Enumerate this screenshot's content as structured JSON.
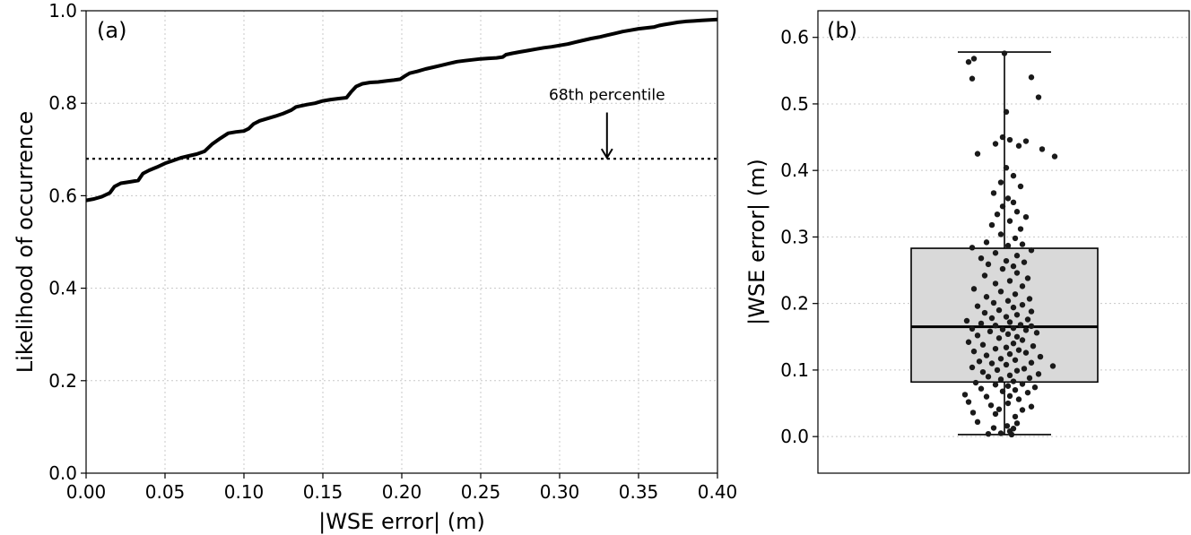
{
  "chart_data": [
    {
      "type": "line",
      "panel_label": "(a)",
      "xlabel": "|WSE error| (m)",
      "ylabel": "Likelihood of occurrence",
      "xlim": [
        0.0,
        0.4
      ],
      "ylim": [
        0.0,
        1.0
      ],
      "xticks": [
        "0.00",
        "0.05",
        "0.10",
        "0.15",
        "0.20",
        "0.25",
        "0.30",
        "0.35",
        "0.40"
      ],
      "yticks": [
        "0.0",
        "0.2",
        "0.4",
        "0.6",
        "0.8",
        "1.0"
      ],
      "grid": true,
      "series": [
        {
          "x": [
            0.0,
            0.005,
            0.01,
            0.015,
            0.018,
            0.022,
            0.028,
            0.033,
            0.036,
            0.04,
            0.045,
            0.05,
            0.055,
            0.06,
            0.065,
            0.07,
            0.075,
            0.08,
            0.085,
            0.09,
            0.095,
            0.1,
            0.103,
            0.106,
            0.11,
            0.115,
            0.12,
            0.125,
            0.13,
            0.133,
            0.137,
            0.14,
            0.145,
            0.15,
            0.155,
            0.16,
            0.165,
            0.168,
            0.171,
            0.175,
            0.18,
            0.185,
            0.19,
            0.195,
            0.199,
            0.202,
            0.205,
            0.21,
            0.215,
            0.22,
            0.225,
            0.23,
            0.235,
            0.24,
            0.245,
            0.25,
            0.255,
            0.26,
            0.264,
            0.266,
            0.27,
            0.275,
            0.28,
            0.285,
            0.29,
            0.295,
            0.3,
            0.305,
            0.31,
            0.315,
            0.32,
            0.325,
            0.33,
            0.335,
            0.34,
            0.345,
            0.35,
            0.355,
            0.36,
            0.363,
            0.366,
            0.37,
            0.375,
            0.38,
            0.385,
            0.39,
            0.395,
            0.4
          ],
          "y": [
            0.59,
            0.593,
            0.598,
            0.606,
            0.62,
            0.627,
            0.63,
            0.633,
            0.648,
            0.655,
            0.662,
            0.67,
            0.676,
            0.682,
            0.686,
            0.69,
            0.696,
            0.712,
            0.724,
            0.735,
            0.738,
            0.74,
            0.745,
            0.755,
            0.762,
            0.767,
            0.772,
            0.778,
            0.785,
            0.792,
            0.795,
            0.797,
            0.8,
            0.805,
            0.808,
            0.81,
            0.812,
            0.825,
            0.836,
            0.842,
            0.845,
            0.846,
            0.848,
            0.85,
            0.852,
            0.859,
            0.865,
            0.869,
            0.874,
            0.878,
            0.882,
            0.886,
            0.89,
            0.892,
            0.894,
            0.896,
            0.897,
            0.898,
            0.9,
            0.905,
            0.908,
            0.911,
            0.914,
            0.917,
            0.92,
            0.922,
            0.925,
            0.928,
            0.932,
            0.936,
            0.94,
            0.943,
            0.947,
            0.951,
            0.955,
            0.958,
            0.961,
            0.963,
            0.965,
            0.968,
            0.97,
            0.972,
            0.975,
            0.977,
            0.978,
            0.979,
            0.98,
            0.981
          ]
        }
      ],
      "hline": {
        "y": 0.68,
        "style": "dotted"
      },
      "annotation": {
        "text": "68th percentile",
        "arrow_x": 0.33,
        "arrow_from_y": 0.78,
        "arrow_to_y": 0.682
      }
    },
    {
      "type": "box",
      "panel_label": "(b)",
      "xlabel": "",
      "ylabel": "|WSE error| (m)",
      "ylim": [
        -0.055,
        0.64
      ],
      "yticks": [
        "0.0",
        "0.1",
        "0.2",
        "0.3",
        "0.4",
        "0.5",
        "0.6"
      ],
      "grid": true,
      "box": {
        "whisker_low": 0.003,
        "q1": 0.082,
        "median": 0.165,
        "q3": 0.283,
        "whisker_high": 0.578
      },
      "points": [
        [
          0.008,
          0.003
        ],
        [
          -0.004,
          0.005
        ],
        [
          0.006,
          0.008
        ],
        [
          0.01,
          0.012
        ],
        [
          -0.012,
          0.013
        ],
        [
          0.003,
          0.016
        ],
        [
          -0.018,
          0.004
        ],
        [
          0.014,
          0.02
        ],
        [
          -0.03,
          0.022
        ],
        [
          0.012,
          0.03
        ],
        [
          -0.01,
          0.034
        ],
        [
          -0.035,
          0.036
        ],
        [
          0.02,
          0.04
        ],
        [
          -0.006,
          0.041
        ],
        [
          0.03,
          0.045
        ],
        [
          -0.015,
          0.047
        ],
        [
          0.004,
          0.05
        ],
        [
          -0.04,
          0.052
        ],
        [
          0.016,
          0.056
        ],
        [
          -0.02,
          0.06
        ],
        [
          0.006,
          0.061
        ],
        [
          -0.044,
          0.063
        ],
        [
          0.026,
          0.066
        ],
        [
          -0.002,
          0.068
        ],
        [
          0.012,
          0.07
        ],
        [
          -0.026,
          0.072
        ],
        [
          0.034,
          0.074
        ],
        [
          0.004,
          0.076
        ],
        [
          -0.01,
          0.078
        ],
        [
          0.02,
          0.079
        ],
        [
          -0.032,
          0.081
        ],
        [
          0.01,
          0.083
        ],
        [
          -0.004,
          0.086
        ],
        [
          0.028,
          0.088
        ],
        [
          -0.018,
          0.09
        ],
        [
          0.006,
          0.092
        ],
        [
          0.038,
          0.094
        ],
        [
          -0.024,
          0.097
        ],
        [
          0.014,
          0.099
        ],
        [
          -0.008,
          0.1
        ],
        [
          0.022,
          0.102
        ],
        [
          -0.036,
          0.104
        ],
        [
          0.054,
          0.106
        ],
        [
          0.002,
          0.108
        ],
        [
          -0.014,
          0.11
        ],
        [
          0.03,
          0.111
        ],
        [
          -0.028,
          0.113
        ],
        [
          0.012,
          0.115
        ],
        [
          -0.004,
          0.117
        ],
        [
          0.04,
          0.12
        ],
        [
          -0.02,
          0.122
        ],
        [
          0.006,
          0.124
        ],
        [
          0.024,
          0.126
        ],
        [
          -0.034,
          0.128
        ],
        [
          0.016,
          0.13
        ],
        [
          -0.01,
          0.132
        ],
        [
          0.002,
          0.134
        ],
        [
          0.032,
          0.136
        ],
        [
          -0.024,
          0.138
        ],
        [
          0.01,
          0.14
        ],
        [
          -0.04,
          0.142
        ],
        [
          0.02,
          0.145
        ],
        [
          -0.006,
          0.148
        ],
        [
          0.014,
          0.15
        ],
        [
          -0.03,
          0.152
        ],
        [
          0.004,
          0.154
        ],
        [
          0.036,
          0.156
        ],
        [
          -0.016,
          0.158
        ],
        [
          0.024,
          0.16
        ],
        [
          -0.002,
          0.161
        ],
        [
          -0.036,
          0.162
        ],
        [
          0.01,
          0.163
        ],
        [
          0.03,
          0.166
        ],
        [
          -0.01,
          0.167
        ],
        [
          0.018,
          0.168
        ],
        [
          -0.026,
          0.17
        ],
        [
          0.006,
          0.172
        ],
        [
          -0.042,
          0.174
        ],
        [
          0.026,
          0.176
        ],
        [
          -0.014,
          0.178
        ],
        [
          0.002,
          0.18
        ],
        [
          0.014,
          0.183
        ],
        [
          -0.022,
          0.186
        ],
        [
          0.03,
          0.188
        ],
        [
          -0.006,
          0.19
        ],
        [
          0.01,
          0.194
        ],
        [
          -0.03,
          0.196
        ],
        [
          0.02,
          0.198
        ],
        [
          -0.012,
          0.201
        ],
        [
          0.004,
          0.204
        ],
        [
          0.028,
          0.207
        ],
        [
          -0.02,
          0.21
        ],
        [
          0.012,
          0.214
        ],
        [
          -0.004,
          0.218
        ],
        [
          -0.034,
          0.222
        ],
        [
          0.02,
          0.226
        ],
        [
          -0.01,
          0.23
        ],
        [
          0.006,
          0.234
        ],
        [
          0.026,
          0.238
        ],
        [
          -0.022,
          0.242
        ],
        [
          0.014,
          0.246
        ],
        [
          -0.002,
          0.252
        ],
        [
          0.01,
          0.256
        ],
        [
          -0.018,
          0.259
        ],
        [
          0.022,
          0.262
        ],
        [
          0.002,
          0.264
        ],
        [
          -0.026,
          0.268
        ],
        [
          0.014,
          0.272
        ],
        [
          -0.01,
          0.276
        ],
        [
          0.03,
          0.28
        ],
        [
          -0.036,
          0.284
        ],
        [
          0.004,
          0.287
        ],
        [
          0.02,
          0.289
        ],
        [
          -0.02,
          0.292
        ],
        [
          0.012,
          0.298
        ],
        [
          -0.004,
          0.304
        ],
        [
          0.018,
          0.312
        ],
        [
          -0.014,
          0.318
        ],
        [
          0.006,
          0.324
        ],
        [
          0.024,
          0.33
        ],
        [
          -0.008,
          0.334
        ],
        [
          0.014,
          0.338
        ],
        [
          -0.002,
          0.346
        ],
        [
          0.01,
          0.352
        ],
        [
          0.004,
          0.358
        ],
        [
          -0.012,
          0.366
        ],
        [
          0.018,
          0.376
        ],
        [
          -0.004,
          0.382
        ],
        [
          0.01,
          0.392
        ],
        [
          0.002,
          0.404
        ],
        [
          -0.03,
          0.425
        ],
        [
          0.056,
          0.421
        ],
        [
          0.042,
          0.432
        ],
        [
          0.016,
          0.437
        ],
        [
          -0.01,
          0.44
        ],
        [
          0.006,
          0.446
        ],
        [
          0.024,
          0.444
        ],
        [
          -0.002,
          0.45
        ],
        [
          0.002,
          0.488
        ],
        [
          0.038,
          0.51
        ],
        [
          0.03,
          0.54
        ],
        [
          -0.036,
          0.538
        ],
        [
          -0.04,
          0.563
        ],
        [
          -0.034,
          0.568
        ],
        [
          0.0,
          0.576
        ]
      ]
    }
  ]
}
